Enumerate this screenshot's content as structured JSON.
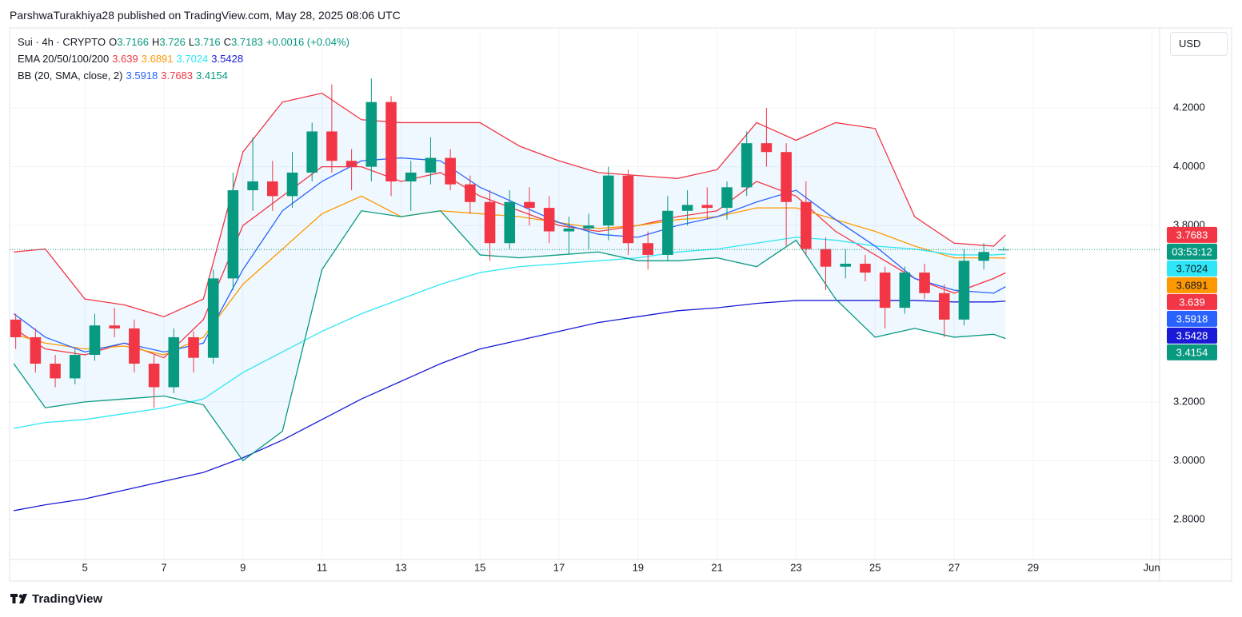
{
  "header": {
    "published": "ParshwaTurakhiya28 published on TradingView.com, May 28, 2025 08:06 UTC"
  },
  "footer": {
    "brand": "TradingView"
  },
  "chart_data": {
    "type": "candlestick",
    "symbol": "Sui · 4h · CRYPTO",
    "ohlc_labels": [
      "O",
      "H",
      "L",
      "C"
    ],
    "change": "+0.0016 (+0.04%)",
    "currency": "USD",
    "countdown": "03:53:12",
    "up_color": "#089981",
    "down_color": "#f23645",
    "x": [
      3.25,
      3.75,
      4.25,
      4.75,
      5.25,
      5.75,
      6.25,
      6.75,
      7.25,
      7.75,
      8.25,
      8.75,
      9.25,
      9.75,
      10.25,
      10.75,
      11.25,
      11.75,
      12.25,
      12.75,
      13.25,
      13.75,
      14.25,
      14.75,
      15.25,
      15.75,
      16.25,
      16.75,
      17.25,
      17.75,
      18.25,
      18.75,
      19.25,
      19.75,
      20.25,
      20.75,
      21.25,
      21.75,
      22.25,
      22.75,
      23.25,
      23.75,
      24.25,
      24.75,
      25.25,
      25.75,
      26.25,
      26.75,
      27.25,
      27.75,
      28.25
    ],
    "open": [
      3.48,
      3.42,
      3.33,
      3.28,
      3.36,
      3.46,
      3.45,
      3.33,
      3.25,
      3.42,
      3.35,
      3.62,
      3.92,
      3.95,
      3.9,
      3.98,
      4.12,
      4.02,
      4.0,
      4.22,
      3.95,
      3.98,
      4.03,
      3.94,
      3.88,
      3.74,
      3.88,
      3.86,
      3.78,
      3.79,
      3.8,
      3.97,
      3.74,
      3.7,
      3.85,
      3.87,
      3.86,
      3.93,
      4.08,
      4.05,
      3.88,
      3.72,
      3.66,
      3.67,
      3.64,
      3.52,
      3.64,
      3.57,
      3.48,
      3.68,
      3.7166
    ],
    "high": [
      3.5,
      3.45,
      3.36,
      3.38,
      3.5,
      3.52,
      3.48,
      3.36,
      3.45,
      3.44,
      3.65,
      3.98,
      4.1,
      4.02,
      4.05,
      4.15,
      4.28,
      4.06,
      4.3,
      4.24,
      4.02,
      4.1,
      4.06,
      3.97,
      3.92,
      3.92,
      3.93,
      3.9,
      3.83,
      3.84,
      4.0,
      3.99,
      3.78,
      3.9,
      3.92,
      3.93,
      3.95,
      4.12,
      4.2,
      4.08,
      3.95,
      3.76,
      3.72,
      3.7,
      3.66,
      3.66,
      3.67,
      3.6,
      3.72,
      3.74,
      3.726
    ],
    "low": [
      3.38,
      3.3,
      3.25,
      3.26,
      3.34,
      3.42,
      3.3,
      3.18,
      3.23,
      3.3,
      3.33,
      3.58,
      3.85,
      3.85,
      3.86,
      3.95,
      3.98,
      3.92,
      3.95,
      3.9,
      3.85,
      3.94,
      3.92,
      3.84,
      3.68,
      3.72,
      3.8,
      3.74,
      3.7,
      3.72,
      3.75,
      3.7,
      3.65,
      3.68,
      3.8,
      3.82,
      3.82,
      3.9,
      4.0,
      3.73,
      3.7,
      3.58,
      3.62,
      3.61,
      3.45,
      3.5,
      3.55,
      3.42,
      3.46,
      3.65,
      3.716
    ],
    "close": [
      3.42,
      3.33,
      3.28,
      3.36,
      3.46,
      3.45,
      3.33,
      3.25,
      3.42,
      3.35,
      3.62,
      3.92,
      3.95,
      3.9,
      3.98,
      4.12,
      4.02,
      4.0,
      4.22,
      3.95,
      3.98,
      4.03,
      3.94,
      3.88,
      3.74,
      3.88,
      3.86,
      3.78,
      3.79,
      3.8,
      3.97,
      3.74,
      3.7,
      3.85,
      3.87,
      3.86,
      3.93,
      4.08,
      4.05,
      3.88,
      3.72,
      3.66,
      3.67,
      3.64,
      3.52,
      3.64,
      3.57,
      3.48,
      3.68,
      3.71,
      3.7183
    ],
    "line_x": [
      3.2,
      4,
      5,
      6,
      7,
      8,
      9,
      10,
      11,
      12,
      13,
      14,
      15,
      16,
      17,
      18,
      19,
      20,
      21,
      22,
      23,
      24,
      25,
      26,
      27,
      28,
      28.3
    ],
    "indicators": [
      {
        "name": "EMA 20/50/100/200",
        "series": [
          {
            "color": "#f23645",
            "values": [
              3.45,
              3.38,
              3.36,
              3.4,
              3.35,
              3.48,
              3.8,
              3.9,
              4.0,
              4.0,
              3.95,
              3.98,
              3.9,
              3.85,
              3.8,
              3.78,
              3.8,
              3.83,
              3.85,
              3.95,
              3.9,
              3.78,
              3.7,
              3.62,
              3.57,
              3.62,
              3.639
            ]
          },
          {
            "color": "#ff9800",
            "values": [
              3.43,
              3.4,
              3.38,
              3.39,
              3.36,
              3.42,
              3.6,
              3.72,
              3.84,
              3.9,
              3.83,
              3.85,
              3.84,
              3.83,
              3.81,
              3.79,
              3.8,
              3.82,
              3.83,
              3.86,
              3.86,
              3.82,
              3.78,
              3.73,
              3.69,
              3.69,
              3.6891
            ]
          },
          {
            "color": "#2ee6f5",
            "values": [
              3.11,
              3.13,
              3.14,
              3.16,
              3.18,
              3.21,
              3.3,
              3.37,
              3.44,
              3.5,
              3.55,
              3.6,
              3.64,
              3.66,
              3.67,
              3.68,
              3.69,
              3.71,
              3.72,
              3.74,
              3.76,
              3.75,
              3.73,
              3.72,
              3.7,
              3.7,
              3.7024
            ]
          },
          {
            "color": "#1a1ad6",
            "values": [
              2.83,
              2.85,
              2.87,
              2.9,
              2.93,
              2.96,
              3.01,
              3.07,
              3.14,
              3.21,
              3.27,
              3.33,
              3.38,
              3.41,
              3.44,
              3.47,
              3.49,
              3.51,
              3.52,
              3.535,
              3.545,
              3.545,
              3.545,
              3.545,
              3.54,
              3.54,
              3.5428
            ]
          }
        ]
      },
      {
        "name": "BB (20, SMA, close, 2)",
        "series": [
          {
            "color": "#2962ff",
            "values": [
              3.5,
              3.42,
              3.37,
              3.4,
              3.37,
              3.4,
              3.65,
              3.85,
              3.95,
              4.02,
              4.03,
              4.02,
              3.93,
              3.87,
              3.81,
              3.77,
              3.76,
              3.8,
              3.83,
              3.88,
              3.92,
              3.82,
              3.73,
              3.62,
              3.58,
              3.57,
              3.5918
            ]
          },
          {
            "color": "#f23645",
            "values": [
              3.71,
              3.72,
              3.55,
              3.53,
              3.49,
              3.55,
              4.05,
              4.22,
              4.25,
              4.16,
              4.15,
              4.15,
              4.15,
              4.07,
              4.02,
              3.98,
              3.97,
              3.96,
              3.99,
              4.15,
              4.09,
              4.15,
              4.13,
              3.83,
              3.74,
              3.73,
              3.7683
            ]
          },
          {
            "color": "#089981",
            "values": [
              3.33,
              3.18,
              3.2,
              3.21,
              3.22,
              3.19,
              3.0,
              3.1,
              3.65,
              3.85,
              3.83,
              3.85,
              3.7,
              3.69,
              3.7,
              3.71,
              3.68,
              3.68,
              3.69,
              3.66,
              3.75,
              3.55,
              3.42,
              3.45,
              3.42,
              3.43,
              3.4154
            ]
          }
        ]
      }
    ],
    "xlim": [
      3.095,
      32.2
    ],
    "ylim": [
      2.664,
      4.472
    ],
    "xticks": [
      5,
      7,
      9,
      11,
      13,
      15,
      17,
      19,
      21,
      23,
      25,
      27,
      29,
      {
        "value": 32,
        "label": "Jun"
      }
    ],
    "yticks": [
      {
        "value": 2.8,
        "label": "2.8000"
      },
      {
        "value": 3.0,
        "label": "3.0000"
      },
      {
        "value": 3.2,
        "label": "3.2000"
      },
      {
        "value": 3.8,
        "label": "3.8000"
      },
      {
        "value": 4.0,
        "label": "4.0000"
      },
      {
        "value": 4.2,
        "label": "4.2000"
      }
    ],
    "grid": true
  }
}
